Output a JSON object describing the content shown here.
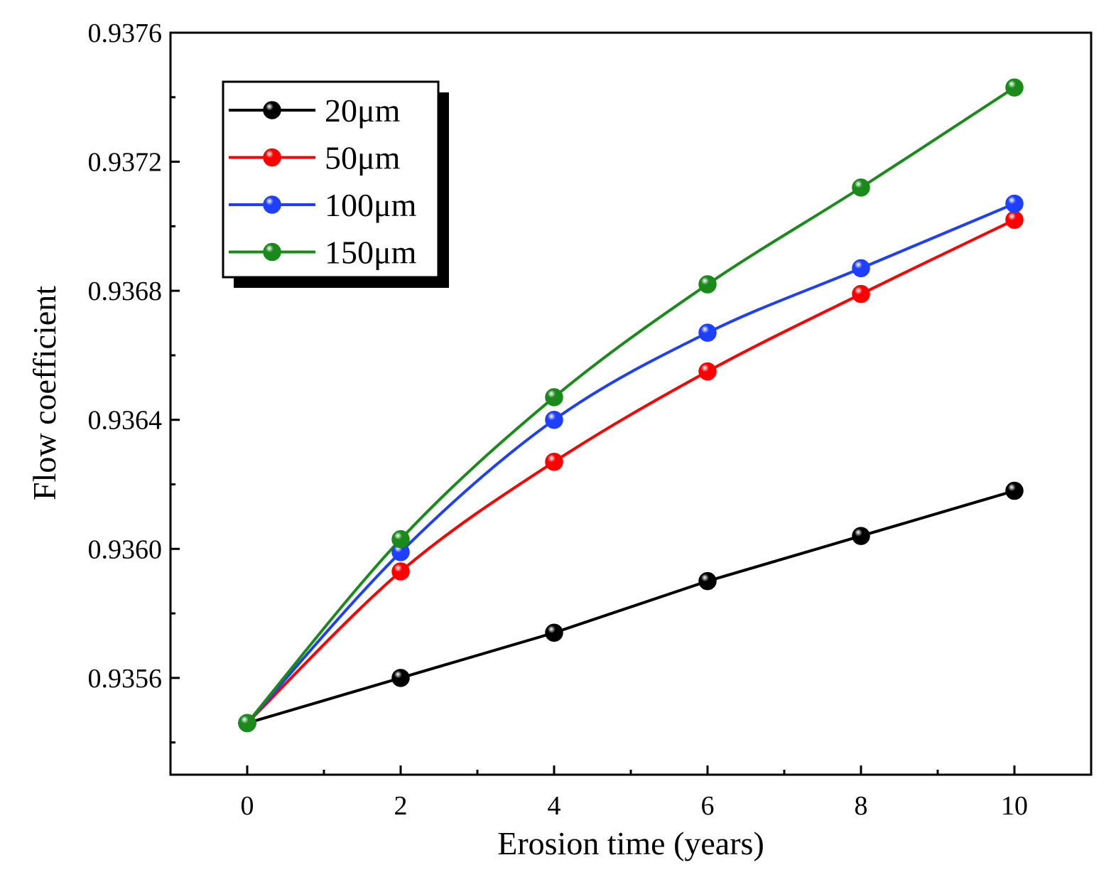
{
  "chart_data": {
    "type": "line",
    "title": "",
    "xlabel": "Erosion time (years)",
    "ylabel": "Flow coefficient",
    "xlim": [
      -1,
      11
    ],
    "ylim": [
      0.9353,
      0.9376
    ],
    "x_ticks": [
      0,
      2,
      4,
      6,
      8,
      10
    ],
    "x_tick_labels": [
      "0",
      "2",
      "4",
      "6",
      "8",
      "10"
    ],
    "x_minor_ticks": [
      1,
      3,
      5,
      7,
      9
    ],
    "y_ticks": [
      0.9356,
      0.936,
      0.9364,
      0.9368,
      0.9372,
      0.9376
    ],
    "y_tick_labels": [
      "0.9356",
      "0.9360",
      "0.9364",
      "0.9368",
      "0.9372",
      "0.9376"
    ],
    "y_minor_ticks": [
      0.9354,
      0.9358,
      0.9362,
      0.9366,
      0.937,
      0.9374
    ],
    "grid": false,
    "legend_position": "top-left",
    "x": [
      0,
      2,
      4,
      6,
      8,
      10
    ],
    "series": [
      {
        "name": "20μm",
        "color": "#000000",
        "values": [
          0.93546,
          0.9356,
          0.93574,
          0.9359,
          0.93604,
          0.93618
        ]
      },
      {
        "name": "50μm",
        "color": "#ff0000",
        "values": [
          0.93546,
          0.93593,
          0.93627,
          0.93655,
          0.93679,
          0.93702
        ]
      },
      {
        "name": "100μm",
        "color": "#1f3fff",
        "values": [
          0.93546,
          0.93599,
          0.9364,
          0.93667,
          0.93687,
          0.93707
        ]
      },
      {
        "name": "150μm",
        "color": "#1a8a1a",
        "values": [
          0.93546,
          0.93603,
          0.93647,
          0.93682,
          0.93712,
          0.93743
        ]
      }
    ]
  }
}
